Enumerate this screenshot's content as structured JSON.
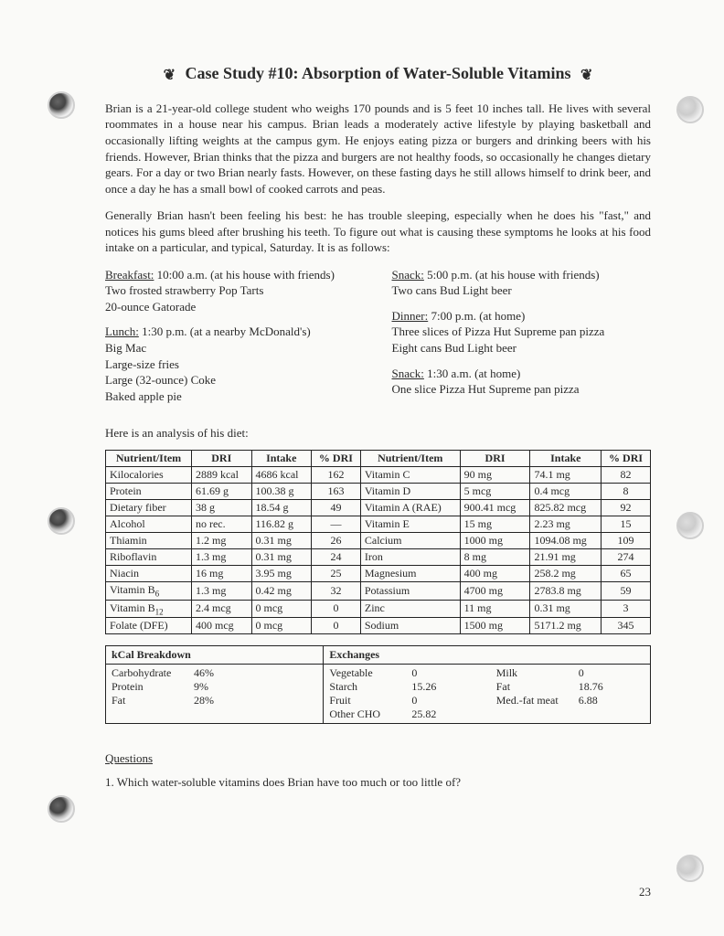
{
  "title": "Case Study #10: Absorption of Water-Soluble Vitamins",
  "para1": "Brian is a 21-year-old college student who weighs 170 pounds and is 5 feet 10 inches tall. He lives with several roommates in a house near his campus. Brian leads a moderately active lifestyle by playing basketball and occasionally lifting weights at the campus gym. He enjoys eating pizza or burgers and drinking beers with his friends. However, Brian thinks that the pizza and burgers are not healthy foods, so occasionally he changes dietary gears. For a day or two Brian nearly fasts. However, on these fasting days he still allows himself to drink beer, and once a day he has a small bowl of cooked carrots and peas.",
  "para2": "Generally Brian hasn't been feeling his best: he has trouble sleeping, especially when he does his \"fast,\" and notices his gums bleed after brushing his teeth. To figure out what is causing these symptoms he looks at his food intake on a particular, and typical, Saturday. It is as follows:",
  "meals": {
    "breakfast": {
      "head": "Breakfast:",
      "time": " 10:00 a.m. (at his house with friends)",
      "items": [
        "Two frosted strawberry Pop Tarts",
        "20-ounce Gatorade"
      ]
    },
    "lunch": {
      "head": "Lunch:",
      "time": " 1:30 p.m. (at a nearby McDonald's)",
      "items": [
        "Big Mac",
        "Large-size fries",
        "Large (32-ounce) Coke",
        "Baked apple pie"
      ]
    },
    "snack1": {
      "head": "Snack:",
      "time": " 5:00 p.m. (at his house with friends)",
      "items": [
        "Two cans Bud Light beer"
      ]
    },
    "dinner": {
      "head": "Dinner:",
      "time": " 7:00 p.m. (at home)",
      "items": [
        "Three slices of Pizza Hut Supreme pan pizza",
        "Eight cans Bud Light beer"
      ]
    },
    "snack2": {
      "head": "Snack:",
      "time": " 1:30 a.m. (at home)",
      "items": [
        "One slice Pizza Hut Supreme pan pizza"
      ]
    }
  },
  "analysis_intro": "Here is an analysis of his diet:",
  "nutrient_headers": [
    "Nutrient/Item",
    "DRI",
    "Intake",
    "% DRI",
    "Nutrient/Item",
    "DRI",
    "Intake",
    "% DRI"
  ],
  "nutrient_rows": [
    [
      "Kilocalories",
      "2889 kcal",
      "4686 kcal",
      "162",
      "Vitamin C",
      "90 mg",
      "74.1 mg",
      "82"
    ],
    [
      "Protein",
      "61.69 g",
      "100.38 g",
      "163",
      "Vitamin D",
      "5 mcg",
      "0.4 mcg",
      "8"
    ],
    [
      "Dietary fiber",
      "38 g",
      "18.54 g",
      "49",
      "Vitamin A (RAE)",
      "900.41 mcg",
      "825.82 mcg",
      "92"
    ],
    [
      "Alcohol",
      "no rec.",
      "116.82 g",
      "—",
      "Vitamin E",
      "15 mg",
      "2.23 mg",
      "15"
    ],
    [
      "Thiamin",
      "1.2 mg",
      "0.31 mg",
      "26",
      "Calcium",
      "1000 mg",
      "1094.08 mg",
      "109"
    ],
    [
      "Riboflavin",
      "1.3 mg",
      "0.31 mg",
      "24",
      "Iron",
      "8 mg",
      "21.91 mg",
      "274"
    ],
    [
      "Niacin",
      "16 mg",
      "3.95 mg",
      "25",
      "Magnesium",
      "400 mg",
      "258.2 mg",
      "65"
    ],
    [
      "Vitamin B₆",
      "1.3 mg",
      "0.42 mg",
      "32",
      "Potassium",
      "4700 mg",
      "2783.8 mg",
      "59"
    ],
    [
      "Vitamin B₁₂",
      "2.4 mcg",
      "0 mcg",
      "0",
      "Zinc",
      "11 mg",
      "0.31 mg",
      "3"
    ],
    [
      "Folate (DFE)",
      "400 mcg",
      "0 mcg",
      "0",
      "Sodium",
      "1500 mg",
      "5171.2 mg",
      "345"
    ]
  ],
  "kcal_header": "kCal Breakdown",
  "kcal_rows": [
    [
      "Carbohydrate",
      "46%"
    ],
    [
      "Protein",
      "9%"
    ],
    [
      "Fat",
      "28%"
    ]
  ],
  "exch_header": "Exchanges",
  "exch_rows": [
    [
      "Vegetable",
      "0",
      "Milk",
      "0"
    ],
    [
      "Starch",
      "15.26",
      "Fat",
      "18.76"
    ],
    [
      "Fruit",
      "0",
      "Med.-fat meat",
      "6.88"
    ],
    [
      "Other CHO",
      "25.82",
      "",
      ""
    ]
  ],
  "questions_head": "Questions",
  "q1": "1.   Which water-soluble vitamins does Brian have too much or too little of?",
  "pagenum": "23"
}
